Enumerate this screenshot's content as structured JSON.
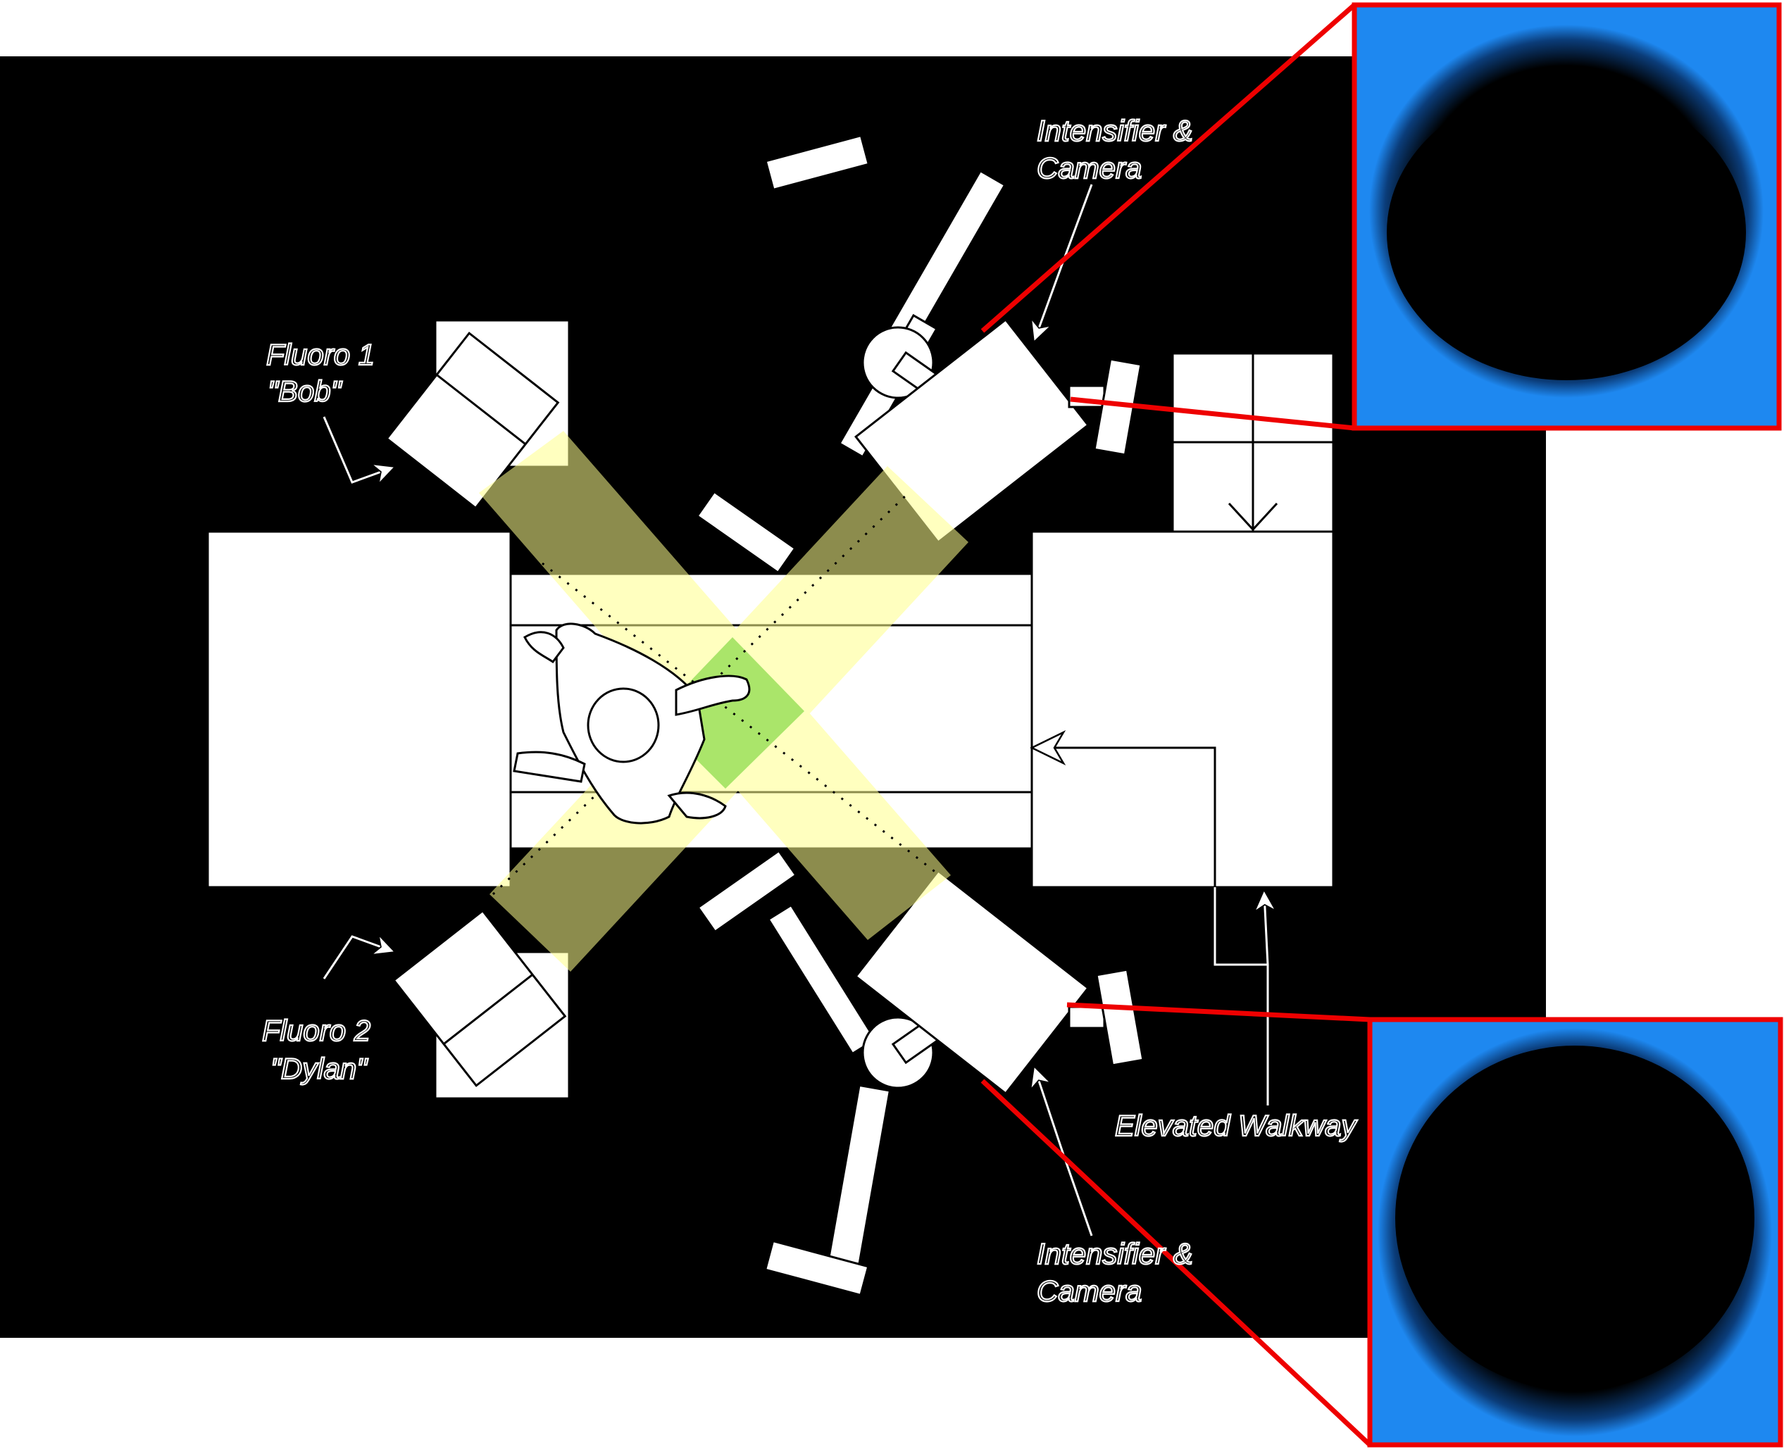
{
  "labels": {
    "fluoro1_name": "Fluoro 1",
    "fluoro1_nick": "\"Bob\"",
    "fluoro2_name": "Fluoro 2",
    "fluoro2_nick": "\"Dylan\"",
    "intensifier_top_1": "Intensifier &",
    "intensifier_top_2": "Camera",
    "intensifier_bottom_1": "Intensifier &",
    "intensifier_bottom_2": "Camera",
    "walkway": "Elevated Walkway"
  },
  "colors": {
    "background": "#000000",
    "page": "#ffffff",
    "xray_beam": "#ffff8c",
    "beam_overlap": "#9be05a",
    "callout": "#ee0000",
    "fluoro_image": "#1e88f0"
  },
  "icons": {
    "direction_arrow": "arrowhead-icon",
    "subject": "person-walking-figure"
  }
}
